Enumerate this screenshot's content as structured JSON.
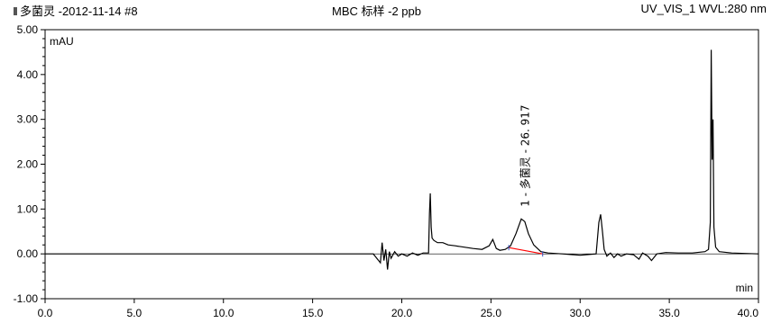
{
  "header": {
    "left": "多菌灵 -2012-11-14 #8",
    "center": "MBC  标样 -2 ppb",
    "right": "UV_VIS_1 WVL:280 nm"
  },
  "chart_data": {
    "type": "line",
    "title": "MBC  标样 -2 ppb",
    "ylabel": "mAU",
    "xlabel": "min",
    "xlim": [
      0,
      40
    ],
    "ylim": [
      -1,
      5
    ],
    "x_ticks": [
      0,
      5,
      10,
      15,
      20,
      25,
      30,
      35,
      40
    ],
    "x_tick_labels": [
      "0.0",
      "5.0",
      "10.0",
      "15.0",
      "20.0",
      "25.0",
      "30.0",
      "35.0",
      "40.0"
    ],
    "y_ticks": [
      -1,
      0,
      1,
      2,
      3,
      4,
      5
    ],
    "y_tick_labels": [
      "-1.00",
      "0.00",
      "1.00",
      "2.00",
      "3.00",
      "4.00",
      "5.00"
    ],
    "grid": false,
    "series": [
      {
        "color": "#000000",
        "x": [
          0,
          5,
          10,
          15,
          18.4,
          18.8,
          18.9,
          19.0,
          19.1,
          19.2,
          19.3,
          19.4,
          19.6,
          19.8,
          20.0,
          20.3,
          20.6,
          20.9,
          21.2,
          21.5,
          21.55,
          21.6,
          21.65,
          21.7,
          21.8,
          22.0,
          22.3,
          22.6,
          23.0,
          23.5,
          24.0,
          24.5,
          24.9,
          25.1,
          25.3,
          25.5,
          25.8,
          26.1,
          26.4,
          26.7,
          26.9,
          27.1,
          27.4,
          27.8,
          28.2,
          29.0,
          30.0,
          30.9,
          31.05,
          31.15,
          31.25,
          31.35,
          31.5,
          31.7,
          31.9,
          32.1,
          32.3,
          32.6,
          33.0,
          33.3,
          33.5,
          33.8,
          34.0,
          34.3,
          34.8,
          35.5,
          36.3,
          37.0,
          37.2,
          37.3,
          37.35,
          37.4,
          37.45,
          37.5,
          37.6,
          37.8,
          38.5,
          40.0
        ],
        "y": [
          0.0,
          0.0,
          0.0,
          0.0,
          0.0,
          -0.2,
          0.25,
          -0.15,
          0.1,
          -0.35,
          0.05,
          -0.1,
          0.05,
          -0.05,
          0.0,
          -0.05,
          0.02,
          -0.03,
          0.02,
          0.02,
          0.9,
          1.35,
          0.6,
          0.35,
          0.3,
          0.25,
          0.25,
          0.2,
          0.18,
          0.15,
          0.12,
          0.1,
          0.18,
          0.32,
          0.12,
          0.08,
          0.1,
          0.18,
          0.45,
          0.78,
          0.72,
          0.45,
          0.2,
          0.05,
          0.02,
          0.0,
          -0.03,
          0.0,
          0.7,
          0.88,
          0.5,
          0.1,
          -0.05,
          0.02,
          -0.08,
          0.0,
          -0.05,
          0.0,
          -0.02,
          -0.12,
          0.02,
          -0.05,
          -0.15,
          0.0,
          0.03,
          0.02,
          0.02,
          0.05,
          0.1,
          0.7,
          4.55,
          2.1,
          3.0,
          0.6,
          0.15,
          0.05,
          0.02,
          0.0
        ]
      }
    ],
    "baseline": {
      "color": "#ff0000",
      "x": [
        26.0,
        27.9
      ],
      "y": [
        0.14,
        0.0
      ]
    },
    "annotations": [
      {
        "text": "1 - 多菌灵 - 26. 917",
        "x": 26.917,
        "y": 0.85,
        "rotation": -90
      }
    ]
  }
}
